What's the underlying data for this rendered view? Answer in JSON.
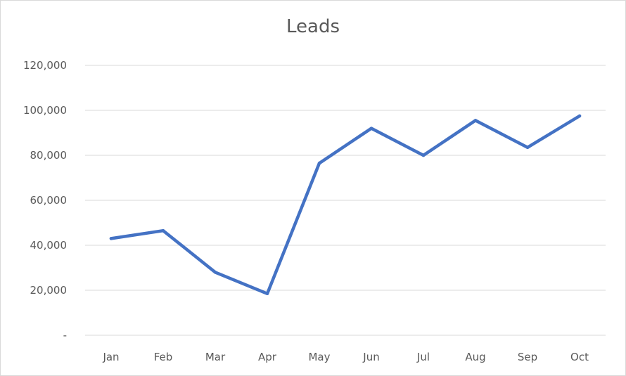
{
  "chart_data": {
    "type": "line",
    "title": "Leads",
    "xlabel": "",
    "ylabel": "",
    "categories": [
      "Jan",
      "Feb",
      "Mar",
      "Apr",
      "May",
      "Jun",
      "Jul",
      "Aug",
      "Sep",
      "Oct"
    ],
    "series": [
      {
        "values": [
          43000,
          46500,
          28000,
          18500,
          76500,
          92000,
          80000,
          95500,
          83500,
          97500
        ],
        "color": "#4472c4"
      }
    ],
    "ylim": [
      0,
      120000
    ],
    "yticks": [
      0,
      20000,
      40000,
      60000,
      80000,
      100000,
      120000
    ],
    "ytick_labels": [
      "-",
      "20,000",
      "40,000",
      "60,000",
      "80,000",
      "100,000",
      "120,000"
    ],
    "grid": true,
    "legend": "none",
    "gridline_color": "#d9d9d9"
  }
}
